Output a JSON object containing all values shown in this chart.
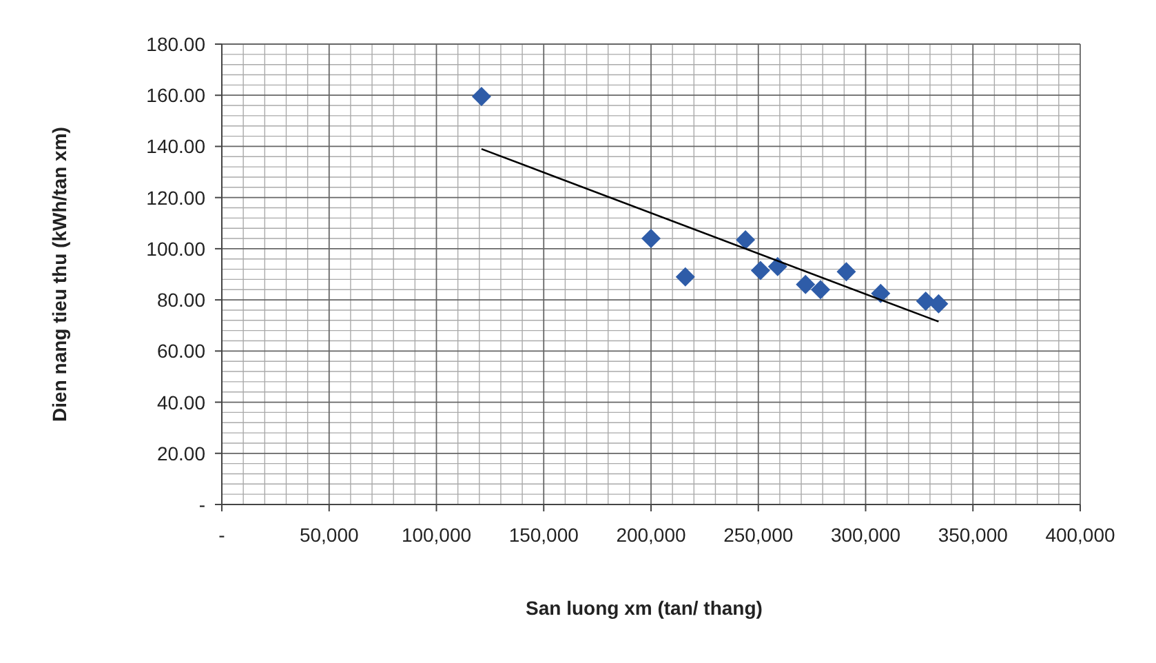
{
  "chart_data": {
    "type": "scatter",
    "xlabel": "San luong xm (tan/ thang)",
    "ylabel": "Dien nang tieu thu (kWh/tan xm)",
    "xlim": [
      0,
      400000
    ],
    "ylim": [
      0,
      180
    ],
    "xticks": [
      {
        "value": 0,
        "label": "-"
      },
      {
        "value": 50000,
        "label": "50,000"
      },
      {
        "value": 100000,
        "label": "100,000"
      },
      {
        "value": 150000,
        "label": "150,000"
      },
      {
        "value": 200000,
        "label": "200,000"
      },
      {
        "value": 250000,
        "label": "250,000"
      },
      {
        "value": 300000,
        "label": "300,000"
      },
      {
        "value": 350000,
        "label": "350,000"
      },
      {
        "value": 400000,
        "label": "400,000"
      }
    ],
    "yticks": [
      {
        "value": 0,
        "label": "-"
      },
      {
        "value": 20,
        "label": "20.00"
      },
      {
        "value": 40,
        "label": "40.00"
      },
      {
        "value": 60,
        "label": "60.00"
      },
      {
        "value": 80,
        "label": "80.00"
      },
      {
        "value": 100,
        "label": "100.00"
      },
      {
        "value": 120,
        "label": "120.00"
      },
      {
        "value": 140,
        "label": "140.00"
      },
      {
        "value": 160,
        "label": "160.00"
      },
      {
        "value": 180,
        "label": "180.00"
      }
    ],
    "grid": true,
    "series": [
      {
        "color": "#2e5ca8",
        "marker": "diamond",
        "x": [
          121000,
          200000,
          216000,
          244000,
          251000,
          259000,
          272000,
          279000,
          291000,
          307000,
          328000,
          334000
        ],
        "values": [
          159.5,
          104,
          89,
          103.5,
          91.5,
          93,
          86,
          84,
          91,
          82.5,
          79.5,
          78.5
        ]
      },
      {
        "type": "line",
        "color": "#000000",
        "marker": "none",
        "x": [
          121000,
          334000
        ],
        "values": [
          139,
          71.5
        ]
      }
    ]
  }
}
